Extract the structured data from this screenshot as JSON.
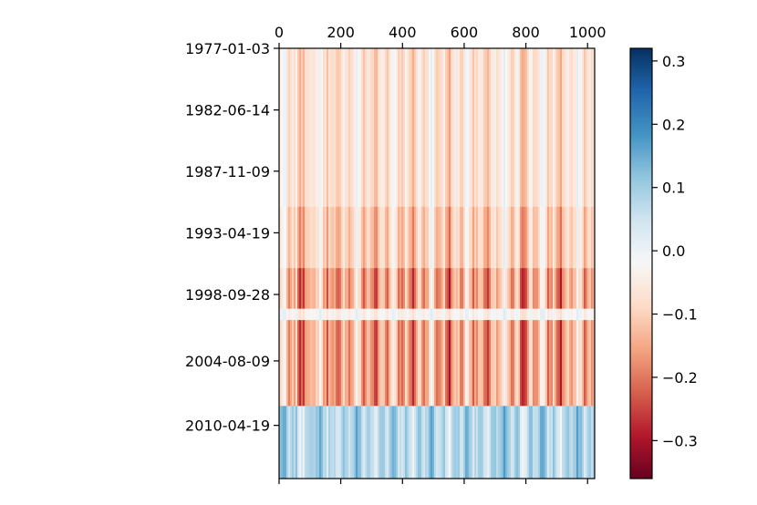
{
  "chart_data": {
    "type": "heatmap",
    "title": "",
    "xlabel": "",
    "ylabel": "",
    "x_ticks": [
      0,
      200,
      400,
      600,
      800,
      1000
    ],
    "x_range": [
      0,
      1023
    ],
    "x_tick_position": "top",
    "y_ticks": [
      "1977-01-03",
      "1982-06-14",
      "1987-11-09",
      "1993-04-19",
      "1998-09-28",
      "2004-08-09",
      "2010-04-19"
    ],
    "y_range": [
      "1977-01-03",
      "2014-12-29"
    ],
    "colormap": "RdBu",
    "colormap_colors": [
      "#67001f",
      "#b2182b",
      "#d6604d",
      "#f4a582",
      "#fddbc7",
      "#f7f7f7",
      "#d1e5f0",
      "#92c5de",
      "#4393c3",
      "#2166ac",
      "#053061"
    ],
    "vmin": -0.36,
    "vmax": 0.32,
    "colorbar_ticks": [
      0.3,
      0.2,
      0.1,
      0.0,
      -0.1,
      -0.2,
      -0.3
    ],
    "colorbar_tick_labels": [
      "0.3",
      "0.2",
      "0.1",
      "0.0",
      "−0.1",
      "−0.2",
      "−0.3"
    ],
    "row_bands": [
      {
        "from": "1977-01-03",
        "to": "1991-01-01",
        "mean": -0.07
      },
      {
        "from": "1991-01-01",
        "to": "1996-06-01",
        "mean": -0.1
      },
      {
        "from": "1996-06-01",
        "to": "2000-01-01",
        "mean": -0.15
      },
      {
        "from": "2000-01-01",
        "to": "2001-01-01",
        "mean": -0.03
      },
      {
        "from": "2001-01-01",
        "to": "2008-08-01",
        "mean": -0.15
      },
      {
        "from": "2008-08-01",
        "to": "2014-12-29",
        "mean": 0.08
      }
    ],
    "grid": false
  }
}
